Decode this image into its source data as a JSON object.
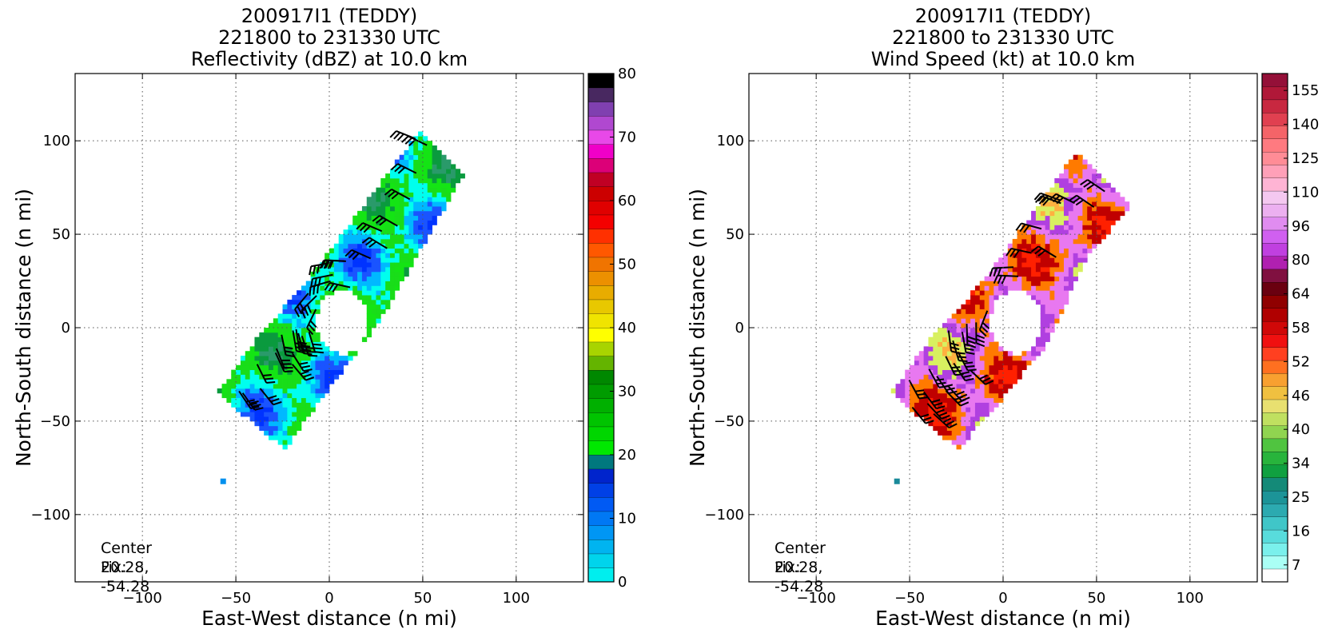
{
  "chart_data": [
    {
      "type": "heatmap",
      "title": [
        "200917I1 (TEDDY)",
        "221800 to 231330 UTC",
        "Reflectivity (dBZ) at 10.0 km"
      ],
      "xlabel": "East-West distance (n mi)",
      "ylabel": "North-South distance (n mi)",
      "xlim": [
        -136,
        136
      ],
      "ylim": [
        -136,
        136
      ],
      "xticks": [
        -100,
        -50,
        0,
        50,
        100
      ],
      "yticks": [
        -100,
        -50,
        0,
        50,
        100
      ],
      "xtick_labels": [
        "−100",
        "−50",
        "0",
        "50",
        "100"
      ],
      "ytick_labels": [
        "−100",
        "−50",
        "0",
        "50",
        "100"
      ],
      "grid": true,
      "annotation": [
        "Center Fix:",
        "20.28, -54.28"
      ],
      "colorbar": {
        "min": 0,
        "max": 80,
        "ticks": [
          0,
          10,
          20,
          30,
          40,
          50,
          60,
          70,
          80
        ],
        "tick_labels": [
          "0",
          "10",
          "20",
          "30",
          "40",
          "50",
          "60",
          "70",
          "80"
        ],
        "colors": [
          "#00eeee",
          "#00d4ec",
          "#00b4f0",
          "#0096f4",
          "#0078f4",
          "#005af4",
          "#0040e6",
          "#0024cc",
          "#00787e",
          "#00e800",
          "#00d600",
          "#00c400",
          "#00b000",
          "#009c00",
          "#008800",
          "#64b400",
          "#a8d400",
          "#ffff00",
          "#f0e400",
          "#e8c800",
          "#e8ac00",
          "#ec9000",
          "#f07400",
          "#ff5800",
          "#ff3000",
          "#f40000",
          "#e00000",
          "#cc0000",
          "#c00024",
          "#dc0078",
          "#f000c8",
          "#e848e8",
          "#b048d0",
          "#8040b0",
          "#482860",
          "#000000"
        ]
      },
      "field_palette": [
        "#0033ff",
        "#1a54ff",
        "#00b8ff",
        "#00ffee",
        "#19dd19",
        "#14e414",
        "#0a9a3e",
        "#2a9a6a"
      ],
      "echo_shape": [
        [
          -60,
          -35
        ],
        [
          -24,
          -65
        ],
        [
          28,
          5
        ],
        [
          72,
          82
        ],
        [
          48,
          105
        ],
        [
          -8,
          30
        ],
        [
          -38,
          -5
        ]
      ],
      "eye": {
        "center": [
          7,
          3
        ],
        "radii": [
          14,
          17
        ]
      },
      "isolated_pixel": [
        -57,
        -82
      ]
    },
    {
      "type": "heatmap",
      "title": [
        "200917I1 (TEDDY)",
        "221800 to 231330 UTC",
        "Wind Speed (kt) at 10.0 km"
      ],
      "xlabel": "East-West distance (n mi)",
      "ylabel": "North-South distance (n mi)",
      "xlim": [
        -136,
        136
      ],
      "ylim": [
        -136,
        136
      ],
      "xticks": [
        -100,
        -50,
        0,
        50,
        100
      ],
      "yticks": [
        -100,
        -50,
        0,
        50,
        100
      ],
      "xtick_labels": [
        "−100",
        "−50",
        "0",
        "50",
        "100"
      ],
      "ytick_labels": [
        "−100",
        "−50",
        "0",
        "50",
        "100"
      ],
      "grid": true,
      "annotation": [
        "Center Fix:",
        "20.28, -54.28"
      ],
      "colorbar": {
        "ticks": [
          7,
          16,
          25,
          34,
          40,
          46,
          52,
          58,
          64,
          80,
          96,
          110,
          125,
          140,
          155
        ],
        "tick_labels": [
          "7",
          "16",
          "25",
          "34",
          "40",
          "46",
          "52",
          "58",
          "64",
          "80",
          "96",
          "110",
          "125",
          "140",
          "155"
        ],
        "colors": [
          "#ffffff",
          "#aafff5",
          "#7af0ec",
          "#58dcdc",
          "#40c6c8",
          "#2caab0",
          "#1c9498",
          "#148a78",
          "#10a040",
          "#28b43c",
          "#50c440",
          "#90d450",
          "#c0e060",
          "#e8e070",
          "#f0c040",
          "#f8a030",
          "#ff7020",
          "#ff4020",
          "#f01010",
          "#d00808",
          "#b00000",
          "#900000",
          "#6a0010",
          "#801040",
          "#b020b0",
          "#c040e0",
          "#d060f0",
          "#e08cf0",
          "#ecb0f0",
          "#f4c8f0",
          "#ffb4d4",
          "#ffa0b8",
          "#ff8c96",
          "#ff7a80",
          "#f46468",
          "#e04050",
          "#c82840",
          "#b01838",
          "#941038"
        ]
      },
      "field_palette": [
        "#ff2000",
        "#c00000",
        "#ff7a00",
        "#e878f0",
        "#b040e0",
        "#d8f060",
        "#ffb040"
      ],
      "echo_shape": [
        [
          -60,
          -35
        ],
        [
          -24,
          -65
        ],
        [
          -2,
          -40
        ],
        [
          24,
          -8
        ],
        [
          45,
          38
        ],
        [
          68,
          65
        ],
        [
          40,
          95
        ],
        [
          -8,
          28
        ],
        [
          -38,
          -5
        ]
      ],
      "eye": {
        "center": [
          7,
          3
        ],
        "radii": [
          14,
          17
        ]
      },
      "isolated_pixel": [
        -57,
        -82
      ]
    }
  ]
}
